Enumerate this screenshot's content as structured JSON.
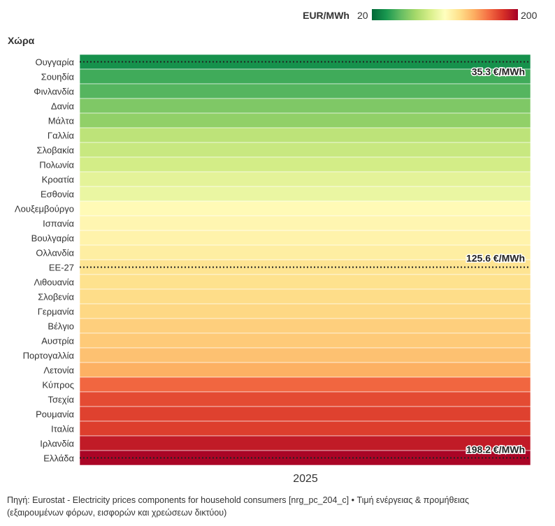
{
  "chart_data": {
    "type": "heatmap",
    "row_axis_title": "Χώρα",
    "colorbar": {
      "label": "EUR/MWh",
      "min": 20,
      "max": 200,
      "min_label": "20",
      "max_label": "200",
      "colors": [
        "#006837",
        "#1a9850",
        "#66bd63",
        "#a6d96a",
        "#d9ef8b",
        "#ffffbf",
        "#fee08b",
        "#fdae61",
        "#f46d43",
        "#d73027",
        "#a50026"
      ]
    },
    "columns": [
      "2025"
    ],
    "rows": [
      {
        "country": "Ουγγαρία",
        "value": 35.3
      },
      {
        "country": "Σουηδία",
        "value": 47
      },
      {
        "country": "Φινλανδία",
        "value": 52
      },
      {
        "country": "Δανία",
        "value": 63
      },
      {
        "country": "Μάλτα",
        "value": 68
      },
      {
        "country": "Γαλλία",
        "value": 82
      },
      {
        "country": "Σλοβακία",
        "value": 86
      },
      {
        "country": "Πολωνία",
        "value": 90
      },
      {
        "country": "Κροατία",
        "value": 97
      },
      {
        "country": "Εσθονία",
        "value": 100
      },
      {
        "country": "Λουξεμβούργο",
        "value": 113
      },
      {
        "country": "Ισπανία",
        "value": 115
      },
      {
        "country": "Βουλγαρία",
        "value": 117
      },
      {
        "country": "Ολλανδία",
        "value": 120
      },
      {
        "country": "ΕΕ-27",
        "value": 125.6
      },
      {
        "country": "Λιθουανία",
        "value": 127
      },
      {
        "country": "Σλοβενία",
        "value": 129
      },
      {
        "country": "Γερμανία",
        "value": 131
      },
      {
        "country": "Βέλγιο",
        "value": 134
      },
      {
        "country": "Αυστρία",
        "value": 136
      },
      {
        "country": "Πορτογαλλία",
        "value": 139
      },
      {
        "country": "Λετονία",
        "value": 145
      },
      {
        "country": "Κύπρος",
        "value": 166
      },
      {
        "country": "Τσεχία",
        "value": 174
      },
      {
        "country": "Ρουμανία",
        "value": 177
      },
      {
        "country": "Ιταλία",
        "value": 178
      },
      {
        "country": "Ιρλανδία",
        "value": 190
      },
      {
        "country": "Ελλάδα",
        "value": 198.2
      }
    ],
    "annotations": [
      {
        "country": "Ουγγαρία",
        "text": "35.3 €/MWh"
      },
      {
        "country": "ΕΕ-27",
        "text": "125.6 €/MWh"
      },
      {
        "country": "Ελλάδα",
        "text": "198.2 €/MWh"
      }
    ]
  },
  "source_text": "Πηγή: Eurostat - Electricity prices components for household consumers [nrg_pc_204_c] • Τιμή ενέργειας & προμήθειας",
  "source_text_line2": "(εξαιρουμένων φόρων, εισφορών και χρεώσεων δικτύου)"
}
